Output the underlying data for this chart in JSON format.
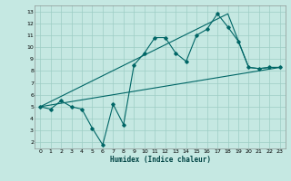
{
  "xlabel": "Humidex (Indice chaleur)",
  "xlim": [
    -0.5,
    23.5
  ],
  "ylim": [
    1.5,
    13.5
  ],
  "xticks": [
    0,
    1,
    2,
    3,
    4,
    5,
    6,
    7,
    8,
    9,
    10,
    11,
    12,
    13,
    14,
    15,
    16,
    17,
    18,
    19,
    20,
    21,
    22,
    23
  ],
  "yticks": [
    2,
    3,
    4,
    5,
    6,
    7,
    8,
    9,
    10,
    11,
    12,
    13
  ],
  "bg_color": "#c5e8e2",
  "grid_color": "#9ecdc4",
  "line_color": "#006666",
  "line1_x": [
    0,
    1,
    2,
    3,
    4,
    5,
    6,
    7,
    8,
    9,
    10,
    11,
    12,
    13,
    14,
    15,
    16,
    17,
    18,
    19,
    20,
    21,
    22,
    23
  ],
  "line1_y": [
    5.0,
    4.8,
    5.5,
    5.0,
    4.8,
    3.2,
    1.8,
    5.2,
    3.5,
    8.5,
    9.5,
    10.8,
    10.8,
    9.5,
    8.8,
    11.0,
    11.5,
    12.8,
    11.7,
    10.5,
    8.3,
    8.2,
    8.3,
    8.3
  ],
  "line2_x": [
    0,
    23
  ],
  "line2_y": [
    5.0,
    8.3
  ],
  "line3_x": [
    0,
    18,
    20,
    21,
    22,
    23
  ],
  "line3_y": [
    5.0,
    12.8,
    8.3,
    8.2,
    8.3,
    8.3
  ]
}
